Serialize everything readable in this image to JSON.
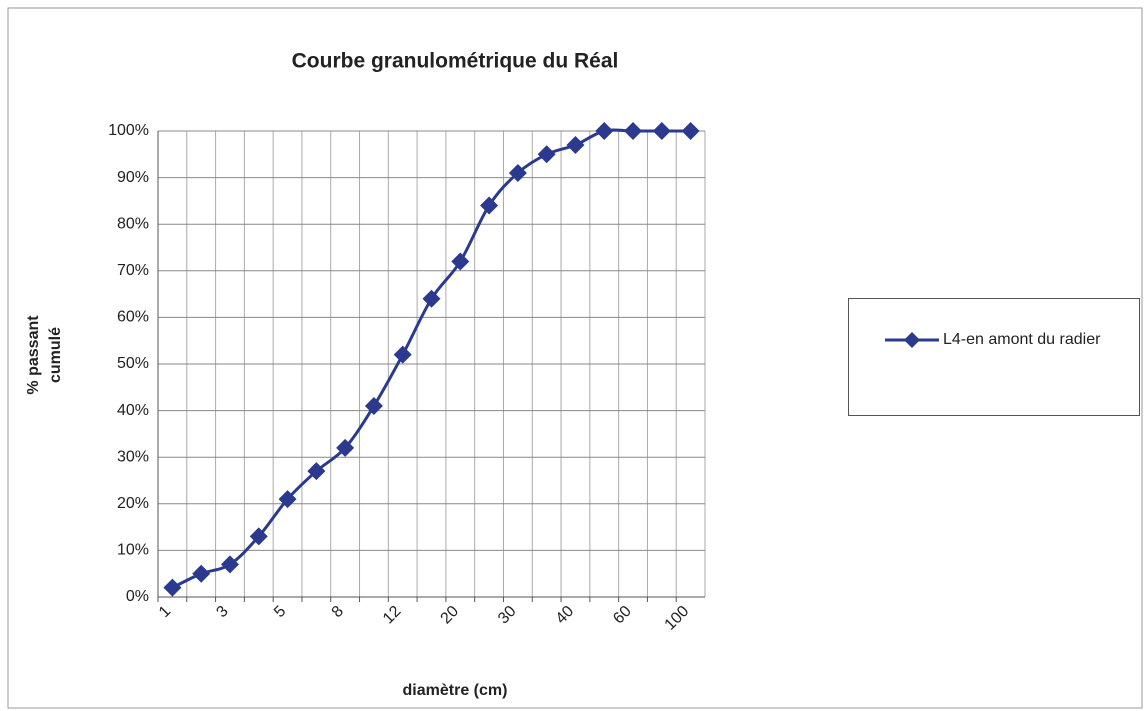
{
  "chart_data": {
    "type": "line",
    "title": "Courbe granulométrique du Réal",
    "ylabel": [
      "% passant",
      "cumulé"
    ],
    "xlabel": "diamètre (cm)",
    "categories": [
      "1",
      null,
      "3",
      null,
      "5",
      null,
      "8",
      null,
      "12",
      null,
      "20",
      null,
      "30",
      null,
      "40",
      null,
      "60",
      null,
      "100"
    ],
    "series": [
      {
        "name": "L4-en amont du radier",
        "color": "#2b3a8f",
        "values": [
          2,
          5,
          7,
          13,
          21,
          27,
          32,
          41,
          52,
          64,
          72,
          84,
          91,
          95,
          97,
          100,
          100,
          100,
          100
        ]
      }
    ],
    "ylim": [
      0,
      100
    ],
    "yticks": [
      {
        "value": 0,
        "label": "0%"
      },
      {
        "value": 10,
        "label": "10%"
      },
      {
        "value": 20,
        "label": "20%"
      },
      {
        "value": 30,
        "label": "30%"
      },
      {
        "value": 40,
        "label": "40%"
      },
      {
        "value": 50,
        "label": "50%"
      },
      {
        "value": 60,
        "label": "60%"
      },
      {
        "value": 70,
        "label": "70%"
      },
      {
        "value": 80,
        "label": "80%"
      },
      {
        "value": 90,
        "label": "90%"
      },
      {
        "value": 100,
        "label": "100%"
      }
    ],
    "grid": true,
    "legend": "right"
  }
}
